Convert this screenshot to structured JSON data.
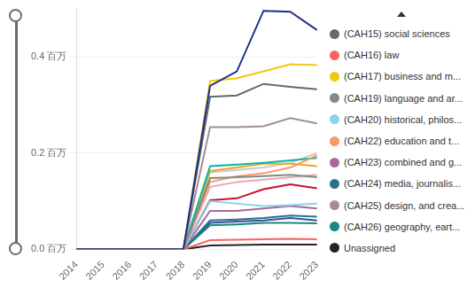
{
  "chart_data": {
    "type": "line",
    "categories": [
      "2014",
      "2015",
      "2016",
      "2017",
      "2018",
      "2019",
      "2020",
      "2021",
      "2022",
      "2023"
    ],
    "ylim": [
      0,
      0.5
    ],
    "yticks": [
      {
        "value": 0,
        "label": "0.0 百万"
      },
      {
        "value": 0.2,
        "label": "0.2 百万"
      },
      {
        "value": 0.4,
        "label": "0.4 百万"
      }
    ],
    "grid": true,
    "legend": "right",
    "series": [
      {
        "color": "#1f2f8f",
        "values": [
          0,
          0,
          0,
          0,
          0,
          0.34,
          0.37,
          0.496,
          0.494,
          0.456
        ]
      },
      {
        "name": "(CAH15) social sciences",
        "color": "#5f6b6d",
        "values": [
          0,
          0,
          0,
          0,
          0,
          0.317,
          0.32,
          0.344,
          0.338,
          0.333
        ]
      },
      {
        "name": "(CAH16) law",
        "color": "#fd625e",
        "values": [
          0,
          0,
          0,
          0,
          0,
          0.019,
          0.02,
          0.021,
          0.022,
          0.021
        ]
      },
      {
        "name": "(CAH17) business and m...",
        "color": "#f2c80f",
        "values": [
          0,
          0,
          0,
          0,
          0,
          0.35,
          0.356,
          0.37,
          0.385,
          0.383
        ]
      },
      {
        "name": "(CAH19) language and ar...",
        "color": "#7f8c82",
        "values": [
          0,
          0,
          0,
          0,
          0,
          0.148,
          0.15,
          0.152,
          0.155,
          0.15
        ]
      },
      {
        "name": "(CAH20) historical, philos...",
        "color": "#8ad4eb",
        "values": [
          0,
          0,
          0,
          0,
          0,
          0.1,
          0.095,
          0.09,
          0.092,
          0.095
        ]
      },
      {
        "name": "(CAH22) education and t...",
        "color": "#fe9666",
        "values": [
          0,
          0,
          0,
          0,
          0,
          0.14,
          0.152,
          0.158,
          0.17,
          0.195
        ]
      },
      {
        "name": "(CAH23) combined and g...",
        "color": "#a66999",
        "values": [
          0,
          0,
          0,
          0,
          0,
          0.08,
          0.08,
          0.085,
          0.09,
          0.085
        ]
      },
      {
        "name": "(CAH24) media, journalis...",
        "color": "#28738a",
        "values": [
          0,
          0,
          0,
          0,
          0,
          0.06,
          0.062,
          0.065,
          0.07,
          0.068
        ]
      },
      {
        "name": "(CAH25) design, and crea...",
        "color": "#a38f8f",
        "values": [
          0,
          0,
          0,
          0,
          0,
          0.254,
          0.254,
          0.256,
          0.273,
          0.262
        ]
      },
      {
        "name": "(CAH26) geography, eart...",
        "color": "#168980",
        "values": [
          0,
          0,
          0,
          0,
          0,
          0.05,
          0.052,
          0.055,
          0.055,
          0.054
        ]
      },
      {
        "name": "Unassigned",
        "color": "#252423",
        "values": [
          0,
          0,
          0,
          0,
          0,
          0.008,
          0.009,
          0.01,
          0.01,
          0.01
        ]
      },
      {
        "color": "#01b8aa",
        "values": [
          0,
          0,
          0,
          0,
          0,
          0.173,
          0.176,
          0.18,
          0.185,
          0.19
        ]
      },
      {
        "color": "#e6a823",
        "values": [
          0,
          0,
          0,
          0,
          0,
          0.163,
          0.17,
          0.178,
          0.178,
          0.173
        ]
      },
      {
        "color": "#c4122f",
        "values": [
          0,
          0,
          0,
          0,
          0,
          0.102,
          0.106,
          0.125,
          0.135,
          0.127
        ]
      },
      {
        "color": "#e6a6b8",
        "values": [
          0,
          0,
          0,
          0,
          0,
          0.13,
          0.14,
          0.145,
          0.15,
          0.155
        ]
      },
      {
        "color": "#d0c8c8",
        "values": [
          0,
          0,
          0,
          0,
          0,
          0.16,
          0.165,
          0.17,
          0.18,
          0.2
        ]
      },
      {
        "color": "#3b4c9b",
        "values": [
          0,
          0,
          0,
          0,
          0,
          0.055,
          0.058,
          0.06,
          0.065,
          0.06
        ]
      }
    ]
  }
}
